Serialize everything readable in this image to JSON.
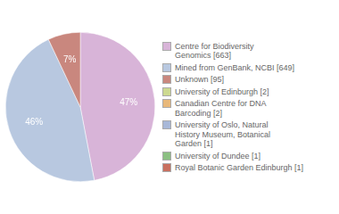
{
  "chart_data": {
    "type": "pie",
    "categories": [
      "Centre for Biodiversity\nGenomics [663]",
      "Mined from GenBank, NCBI [649]",
      "Unknown [95]",
      "University of Edinburgh [2]",
      "Canadian Centre for DNA\nBarcoding [2]",
      "University of Oslo, Natural\nHistory Museum, Botanical\nGarden [1]",
      "University of Dundee [1]",
      "Royal Botanic Garden Edinburgh [1]"
    ],
    "values": [
      47,
      46,
      7,
      0,
      0,
      0,
      0,
      0
    ],
    "value_labels": [
      "47%",
      "46%",
      "7%",
      null,
      null,
      null,
      null,
      null
    ],
    "colors": [
      "#d8b4d8",
      "#b8c8e0",
      "#c9877e",
      "#ccd990",
      "#e8b87a",
      "#a8b8d8",
      "#8bbf82",
      "#c97060"
    ],
    "legend": "right"
  }
}
